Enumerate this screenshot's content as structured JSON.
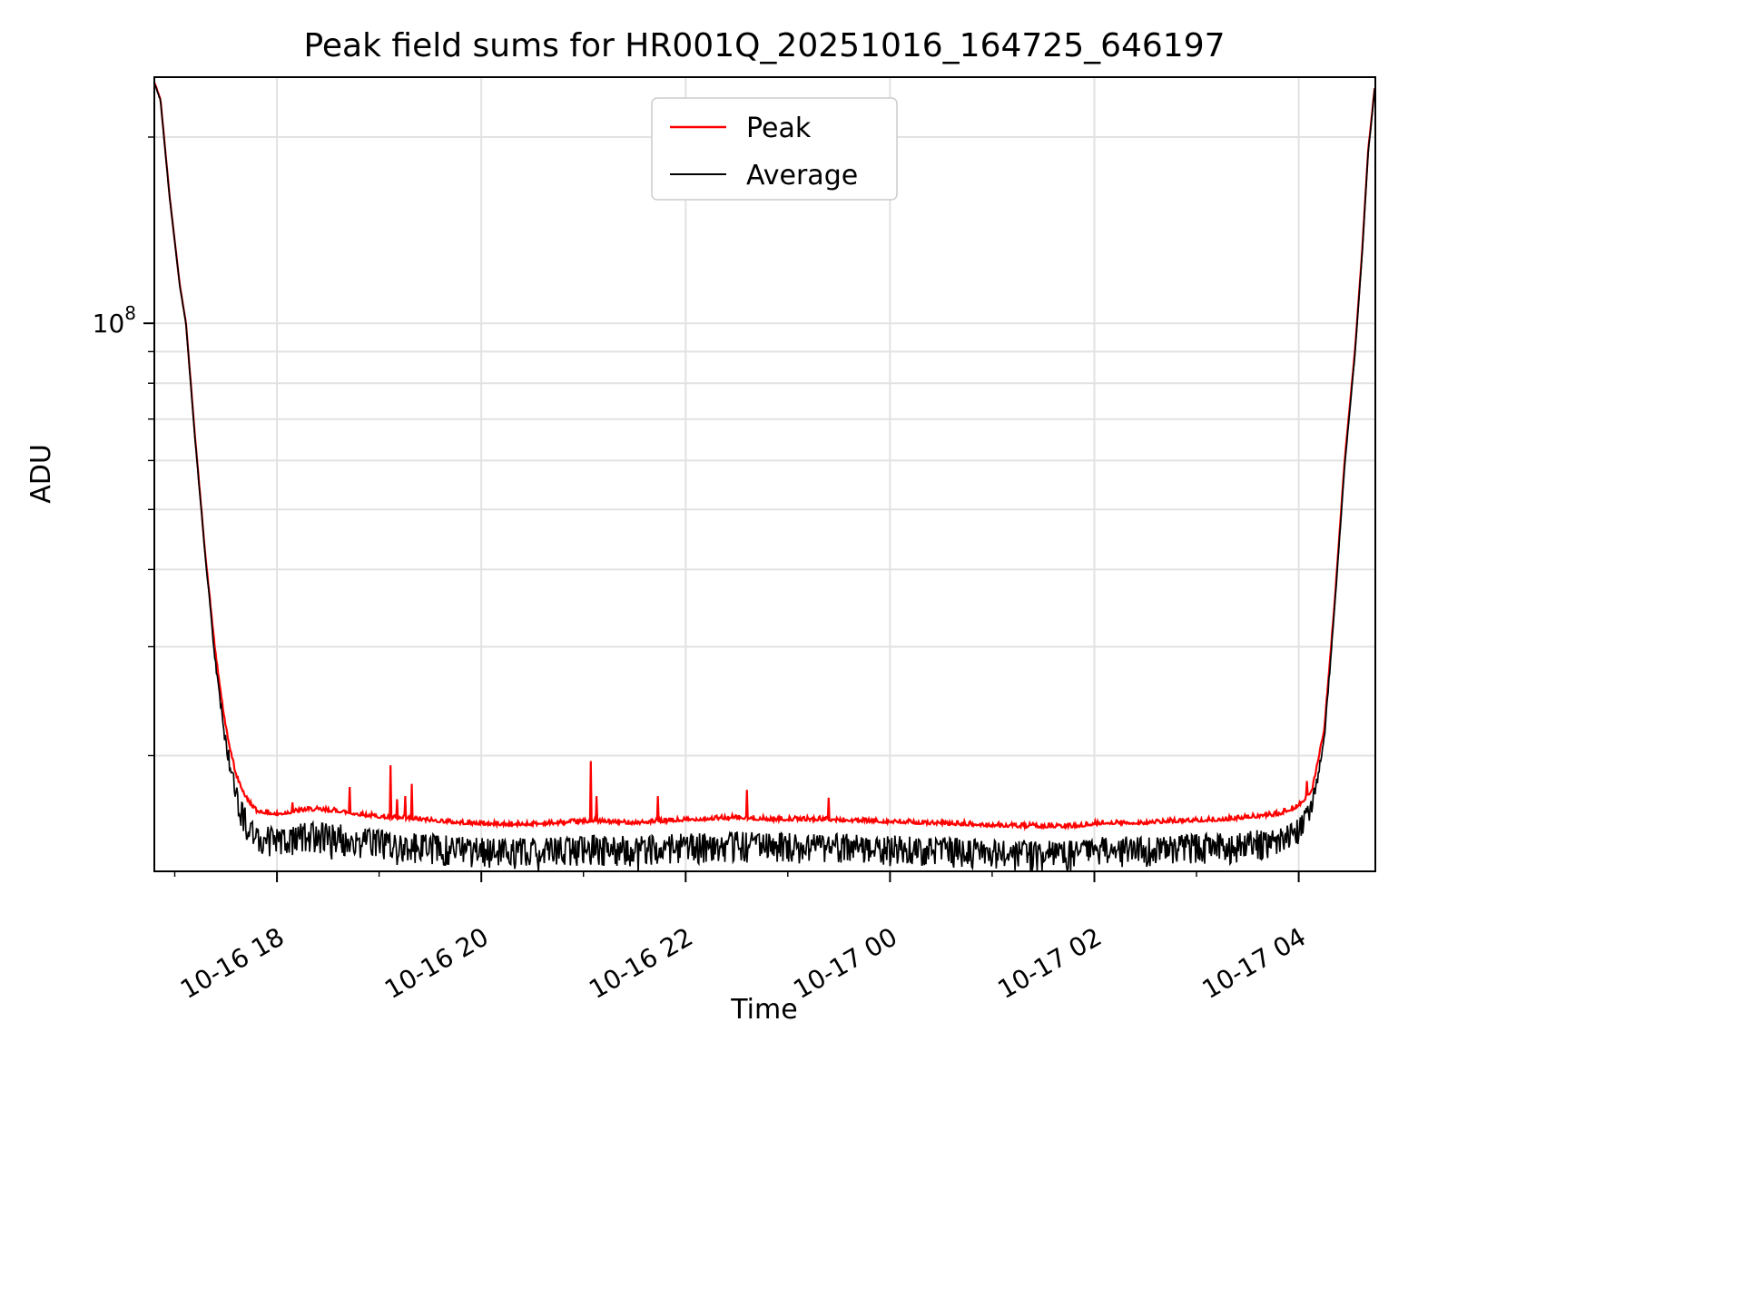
{
  "title": "Peak field sums for HR001Q_20251016_164725_646197",
  "chart_data": {
    "type": "line",
    "title": "Peak field sums for HR001Q_20251016_164725_646197",
    "xlabel": "Time",
    "ylabel": "ADU",
    "yscale": "log",
    "ylim": [
      13000000,
      250000000
    ],
    "x_hours_range": [
      0,
      11.95
    ],
    "x_ticks": [
      {
        "hours": 1.2,
        "label": "10-16 18"
      },
      {
        "hours": 3.2,
        "label": "10-16 20"
      },
      {
        "hours": 5.2,
        "label": "10-16 22"
      },
      {
        "hours": 7.2,
        "label": "10-17 00"
      },
      {
        "hours": 9.2,
        "label": "10-17 02"
      },
      {
        "hours": 11.2,
        "label": "10-17 04"
      }
    ],
    "y_tick": {
      "value": 100000000,
      "base": "10",
      "exp": "8"
    },
    "grid": true,
    "legend_position": "upper center",
    "series": [
      {
        "name": "Peak",
        "color": "#ff0000",
        "noise_dir": "up",
        "x": [
          0,
          0.06,
          0.15,
          0.25,
          0.31,
          0.4,
          0.5,
          0.6,
          0.7,
          0.8,
          0.9,
          1.0,
          1.2,
          1.5,
          1.8,
          2.0,
          2.3,
          2.6,
          3.0,
          3.5,
          4.0,
          4.3,
          4.7,
          5.0,
          5.3,
          5.7,
          6.0,
          6.5,
          7.0,
          7.5,
          8.0,
          8.5,
          9.0,
          9.3,
          9.7,
          10.0,
          10.5,
          11.0,
          11.2,
          11.33,
          11.45,
          11.55,
          11.65,
          11.75,
          11.82,
          11.88,
          11.95
        ],
        "y": [
          245000000.0,
          230000000.0,
          160000000.0,
          115000000.0,
          100000000.0,
          65000000.0,
          42000000.0,
          29000000.0,
          22000000.0,
          18500000.0,
          17000000.0,
          16200000.0,
          16000000.0,
          16300000.0,
          16200000.0,
          16000000.0,
          15800000.0,
          15700000.0,
          15500000.0,
          15400000.0,
          15500000.0,
          15600000.0,
          15500000.0,
          15600000.0,
          15700000.0,
          15800000.0,
          15700000.0,
          15700000.0,
          15600000.0,
          15500000.0,
          15400000.0,
          15300000.0,
          15300000.0,
          15500000.0,
          15500000.0,
          15600000.0,
          15700000.0,
          16000000.0,
          16500000.0,
          17500000.0,
          22000000.0,
          35000000.0,
          60000000.0,
          90000000.0,
          130000000.0,
          190000000.0,
          245000000.0
        ],
        "noise": [
          0.002,
          0.002,
          0.002,
          0.002,
          0.002,
          0.003,
          0.004,
          0.006,
          0.008,
          0.008,
          0.008,
          0.008,
          0.008,
          0.008,
          0.008,
          0.008,
          0.008,
          0.008,
          0.008,
          0.008,
          0.008,
          0.008,
          0.008,
          0.008,
          0.008,
          0.008,
          0.008,
          0.008,
          0.008,
          0.008,
          0.008,
          0.008,
          0.008,
          0.008,
          0.008,
          0.008,
          0.008,
          0.008,
          0.008,
          0.006,
          0.004,
          0.003,
          0.002,
          0.002,
          0.002,
          0.002,
          0.002
        ],
        "spikes": [
          {
            "t": 1.35,
            "v": 16800000.0
          },
          {
            "t": 1.91,
            "v": 17800000.0
          },
          {
            "t": 2.31,
            "v": 19300000.0
          },
          {
            "t": 2.38,
            "v": 17000000.0
          },
          {
            "t": 2.46,
            "v": 17200000.0
          },
          {
            "t": 2.52,
            "v": 18000000.0
          },
          {
            "t": 4.27,
            "v": 19600000.0
          },
          {
            "t": 4.33,
            "v": 17200000.0
          },
          {
            "t": 4.93,
            "v": 17200000.0
          },
          {
            "t": 5.8,
            "v": 17600000.0
          },
          {
            "t": 6.6,
            "v": 17100000.0
          },
          {
            "t": 11.28,
            "v": 18200000.0
          }
        ]
      },
      {
        "name": "Average",
        "color": "#000000",
        "noise_dir": "down",
        "x": [
          0,
          0.06,
          0.15,
          0.25,
          0.31,
          0.4,
          0.5,
          0.6,
          0.7,
          0.8,
          0.9,
          1.0,
          1.2,
          1.5,
          1.8,
          2.0,
          2.3,
          2.6,
          3.0,
          3.5,
          4.0,
          4.3,
          4.7,
          5.0,
          5.3,
          5.7,
          6.0,
          6.5,
          7.0,
          7.5,
          8.0,
          8.5,
          9.0,
          9.3,
          9.7,
          10.0,
          10.5,
          11.0,
          11.2,
          11.33,
          11.45,
          11.55,
          11.65,
          11.75,
          11.82,
          11.88,
          11.95
        ],
        "y": [
          245000000.0,
          230000000.0,
          160000000.0,
          115000000.0,
          100000000.0,
          65000000.0,
          42000000.0,
          28500000.0,
          21500000.0,
          18000000.0,
          16300000.0,
          15500000.0,
          15300000.0,
          15600000.0,
          15500000.0,
          15300000.0,
          15100000.0,
          15000000.0,
          14800000.0,
          14700000.0,
          14800000.0,
          14900000.0,
          14800000.0,
          14900000.0,
          15000000.0,
          15100000.0,
          15000000.0,
          15000000.0,
          14900000.0,
          14800000.0,
          14700000.0,
          14600000.0,
          14600000.0,
          14800000.0,
          14800000.0,
          14900000.0,
          15000000.0,
          15300000.0,
          15800000.0,
          17000000.0,
          21500000.0,
          34500000.0,
          59000000.0,
          89000000.0,
          129000000.0,
          189000000.0,
          245000000.0
        ],
        "noise": [
          0.002,
          0.002,
          0.002,
          0.002,
          0.002,
          0.004,
          0.006,
          0.012,
          0.025,
          0.04,
          0.05,
          0.05,
          0.05,
          0.05,
          0.05,
          0.05,
          0.05,
          0.05,
          0.05,
          0.05,
          0.05,
          0.05,
          0.05,
          0.05,
          0.05,
          0.05,
          0.05,
          0.05,
          0.05,
          0.05,
          0.05,
          0.05,
          0.05,
          0.05,
          0.05,
          0.05,
          0.05,
          0.05,
          0.045,
          0.03,
          0.01,
          0.004,
          0.003,
          0.002,
          0.002,
          0.002,
          0.002
        ],
        "spikes": []
      }
    ]
  }
}
